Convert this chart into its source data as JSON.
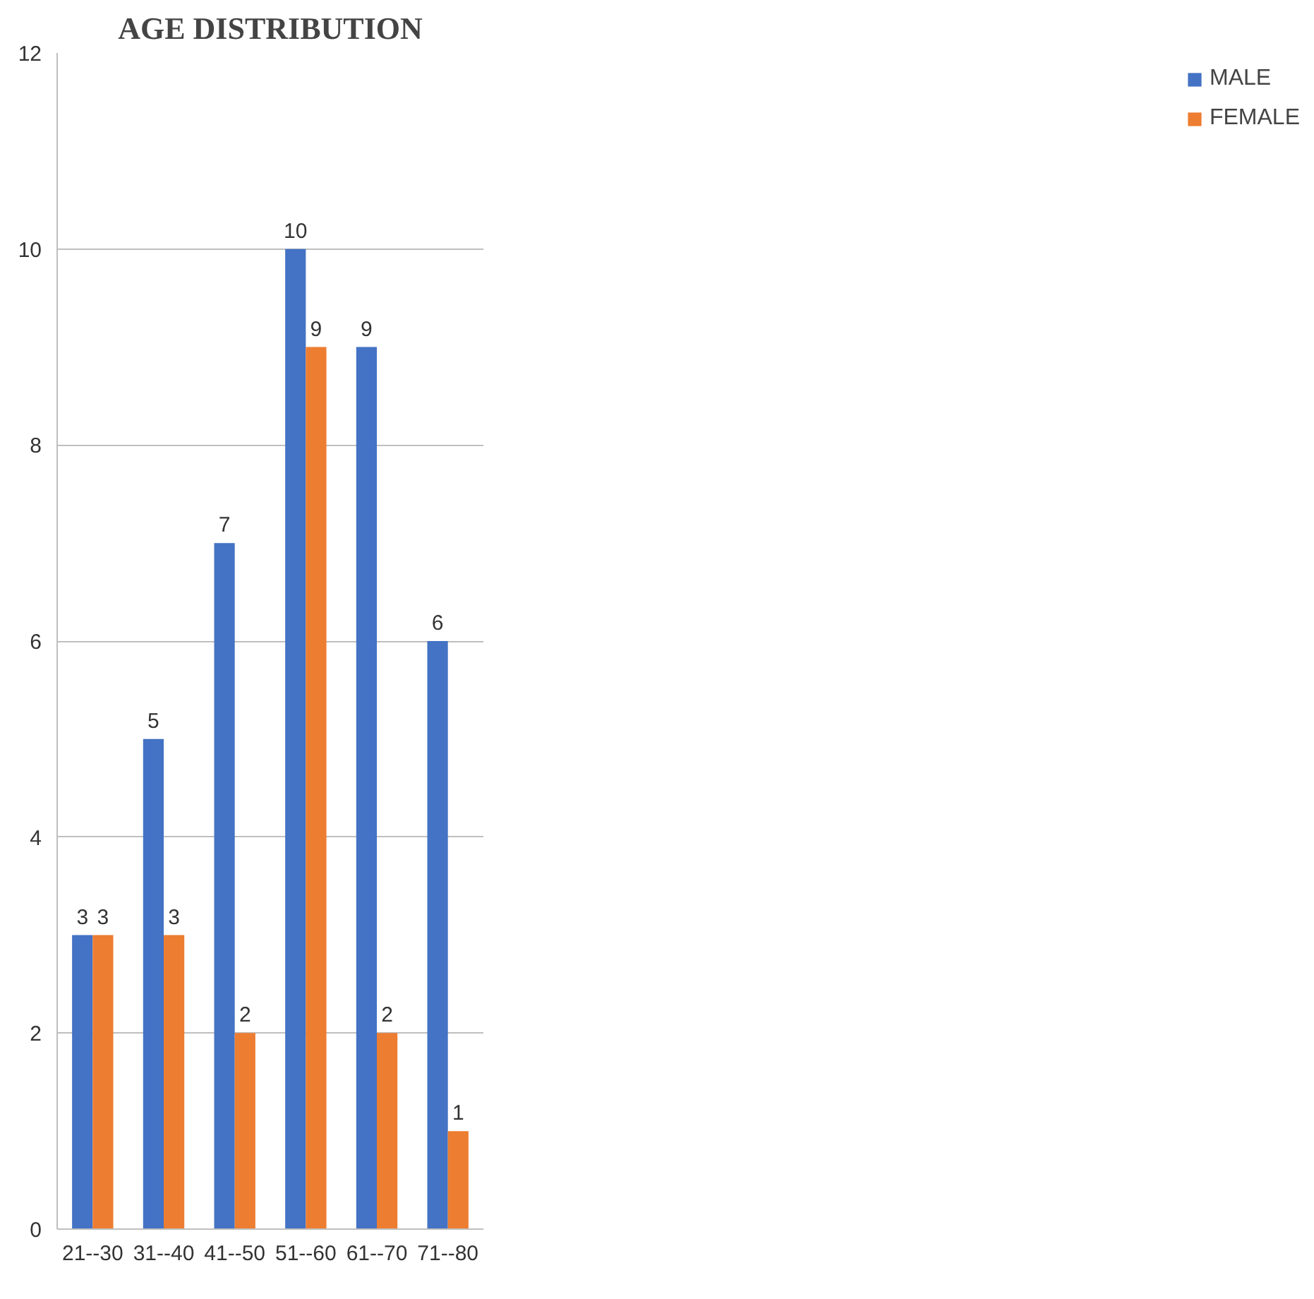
{
  "chart_data": {
    "type": "bar",
    "title": "AGE DISTRIBUTION",
    "categories": [
      "21--30",
      "31--40",
      "41--50",
      "51--60",
      "61--70",
      "71--80"
    ],
    "series": [
      {
        "name": "MALE",
        "color": "#4472c4",
        "values": [
          3,
          5,
          7,
          10,
          9,
          6
        ]
      },
      {
        "name": "FEMALE",
        "color": "#ed7d31",
        "values": [
          3,
          3,
          2,
          9,
          2,
          1
        ]
      }
    ],
    "ylim": [
      0,
      12
    ],
    "yticks": [
      0,
      2,
      4,
      6,
      8,
      10,
      12
    ],
    "grid": "y",
    "legend": "right",
    "data_labels": true
  }
}
